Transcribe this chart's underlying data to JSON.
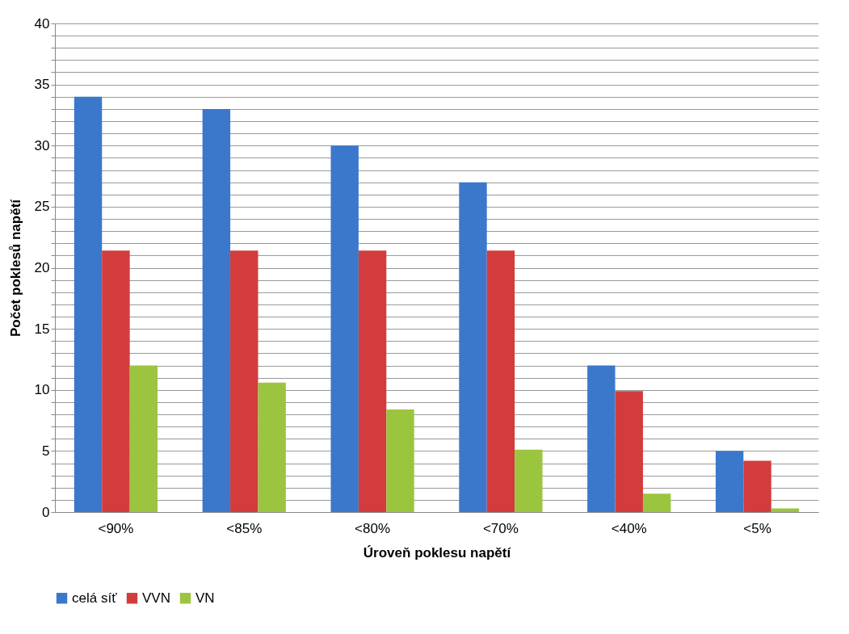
{
  "chart_data": {
    "type": "bar",
    "xlabel": "Úroveň poklesu napětí",
    "ylabel": "Počet poklesů napětí",
    "categories": [
      "<90%",
      "<85%",
      "<80%",
      "<70%",
      "<40%",
      "<5%"
    ],
    "series": [
      {
        "name": "celá síť",
        "color": "#3b78cb",
        "values": [
          34,
          33,
          30,
          27,
          12,
          5
        ]
      },
      {
        "name": "VVN",
        "color": "#d33c3c",
        "values": [
          21.4,
          21.4,
          21.4,
          21.4,
          9.9,
          4.2
        ]
      },
      {
        "name": "VN",
        "color": "#9cc53f",
        "values": [
          12,
          10.6,
          8.4,
          5.1,
          1.5,
          0.3
        ]
      }
    ],
    "ylim": [
      0,
      40
    ],
    "yticks": [
      0,
      {
        "value": 1,
        "label": null
      },
      {
        "value": 2,
        "label": null
      },
      {
        "value": 3,
        "label": null
      },
      {
        "value": 4,
        "label": null
      },
      5,
      {
        "value": 6,
        "label": null
      },
      {
        "value": 7,
        "label": null
      },
      {
        "value": 8,
        "label": null
      },
      {
        "value": 9,
        "label": null
      },
      10,
      {
        "value": 11,
        "label": null
      },
      {
        "value": 12,
        "label": null
      },
      {
        "value": 13,
        "label": null
      },
      {
        "value": 14,
        "label": null
      },
      15,
      {
        "value": 16,
        "label": null
      },
      {
        "value": 17,
        "label": null
      },
      {
        "value": 18,
        "label": null
      },
      {
        "value": 19,
        "label": null
      },
      20,
      {
        "value": 21,
        "label": null
      },
      {
        "value": 22,
        "label": null
      },
      {
        "value": 23,
        "label": null
      },
      {
        "value": 24,
        "label": null
      },
      25,
      {
        "value": 26,
        "label": null
      },
      {
        "value": 27,
        "label": null
      },
      {
        "value": 28,
        "label": null
      },
      {
        "value": 29,
        "label": null
      },
      30,
      {
        "value": 31,
        "label": null
      },
      {
        "value": 32,
        "label": null
      },
      {
        "value": 33,
        "label": null
      },
      {
        "value": 34,
        "label": null
      },
      35,
      {
        "value": 36,
        "label": null
      },
      {
        "value": 37,
        "label": null
      },
      {
        "value": 38,
        "label": null
      },
      {
        "value": 39,
        "label": null
      },
      40
    ],
    "grid": "y",
    "legend": "bottom"
  }
}
